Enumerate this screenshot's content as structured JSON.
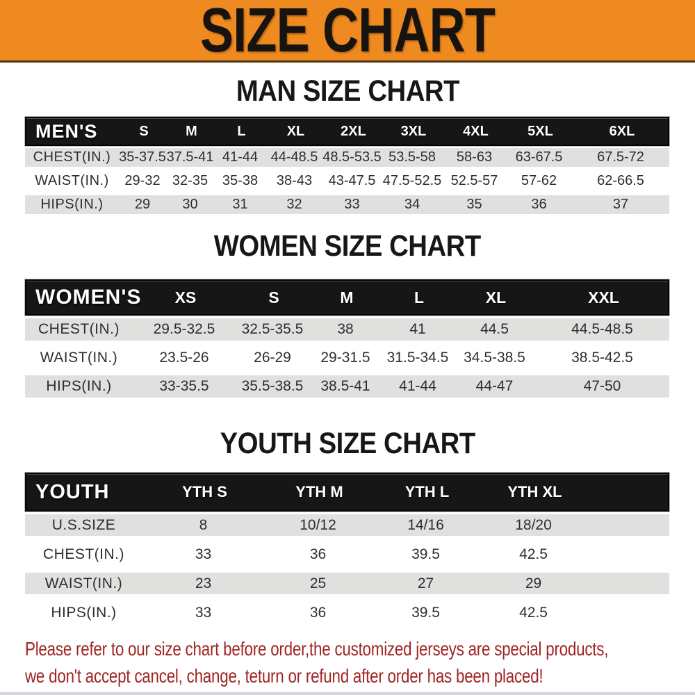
{
  "banner": {
    "title": "SIZE CHART"
  },
  "men": {
    "title": "MAN SIZE CHART",
    "corner": "MEN'S",
    "sizes": [
      "S",
      "M",
      "L",
      "XL",
      "2XL",
      "3XL",
      "4XL",
      "5XL",
      "6XL"
    ],
    "rows": [
      {
        "label": "CHEST(IN.)",
        "values": [
          "35-37.5",
          "37.5-41",
          "41-44",
          "44-48.5",
          "48.5-53.5",
          "53.5-58",
          "58-63",
          "63-67.5",
          "67.5-72"
        ]
      },
      {
        "label": "WAIST(IN.)",
        "values": [
          "29-32",
          "32-35",
          "35-38",
          "38-43",
          "43-47.5",
          "47.5-52.5",
          "52.5-57",
          "57-62",
          "62-66.5"
        ]
      },
      {
        "label": "HIPS(IN.)",
        "values": [
          "29",
          "30",
          "31",
          "32",
          "33",
          "34",
          "35",
          "36",
          "37"
        ]
      }
    ]
  },
  "women": {
    "title": "WOMEN SIZE CHART",
    "corner": "WOMEN'S",
    "sizes": [
      "XS",
      "S",
      "M",
      "L",
      "XL",
      "XXL"
    ],
    "rows": [
      {
        "label": "CHEST(IN.)",
        "values": [
          "29.5-32.5",
          "32.5-35.5",
          "38",
          "41",
          "44.5",
          "44.5-48.5"
        ]
      },
      {
        "label": "WAIST(IN.)",
        "values": [
          "23.5-26",
          "26-29",
          "29-31.5",
          "31.5-34.5",
          "34.5-38.5",
          "38.5-42.5"
        ]
      },
      {
        "label": "HIPS(IN.)",
        "values": [
          "33-35.5",
          "35.5-38.5",
          "38.5-41",
          "41-44",
          "44-47",
          "47-50"
        ]
      }
    ]
  },
  "youth": {
    "title": "YOUTH SIZE CHART",
    "corner": "YOUTH",
    "sizes": [
      "YTH S",
      "YTH M",
      "YTH L",
      "YTH XL"
    ],
    "rows": [
      {
        "label": "U.S.SIZE",
        "values": [
          "8",
          "10/12",
          "14/16",
          "18/20"
        ]
      },
      {
        "label": "CHEST(IN.)",
        "values": [
          "33",
          "36",
          "39.5",
          "42.5"
        ]
      },
      {
        "label": "WAIST(IN.)",
        "values": [
          "23",
          "25",
          "27",
          "29"
        ]
      },
      {
        "label": "HIPS(IN.)",
        "values": [
          "33",
          "36",
          "39.5",
          "42.5"
        ]
      }
    ]
  },
  "disclaimer": {
    "line1": "Please refer to our size chart before order,the customized jerseys are special products,",
    "line2": "we don't accept cancel, change, teturn or refund after order has been placed!"
  },
  "colors": {
    "banner_bg": "#ee8a1f",
    "header_bg": "#161616",
    "row_stripe": "#e0e0de",
    "disclaimer_text": "#a02422"
  }
}
